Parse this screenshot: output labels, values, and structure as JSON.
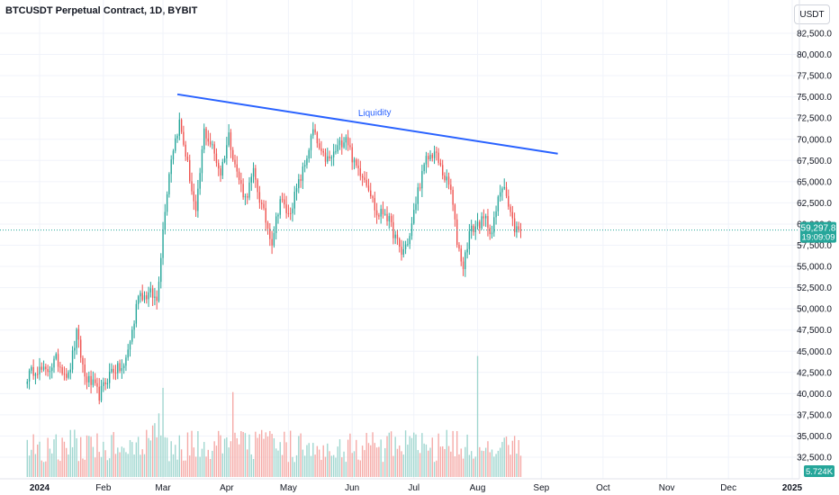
{
  "header": {
    "title": "BTCUSDT Perpetual Contract, 1D, BYBIT",
    "currency_label": "USDT"
  },
  "chart_data": {
    "type": "candlestick",
    "y_axis": {
      "ticks": [
        "32,500.0",
        "35,000.0",
        "37,500.0",
        "40,000.0",
        "42,500.0",
        "45,000.0",
        "47,500.0",
        "50,000.0",
        "52,500.0",
        "55,000.0",
        "57,500.0",
        "60,000.0",
        "62,500.0",
        "65,000.0",
        "67,500.0",
        "70,000.0",
        "72,500.0",
        "75,000.0",
        "77,500.0",
        "80,000.0",
        "82,500.0"
      ],
      "tick_values": [
        32500,
        35000,
        37500,
        40000,
        42500,
        45000,
        47500,
        50000,
        52500,
        55000,
        57500,
        60000,
        62500,
        65000,
        67500,
        70000,
        72500,
        75000,
        77500,
        80000,
        82500
      ],
      "ylim": [
        31500,
        85500
      ]
    },
    "x_axis": {
      "labels": [
        {
          "text": "2024",
          "day": 0,
          "bold": true
        },
        {
          "text": "Feb",
          "day": 31
        },
        {
          "text": "Mar",
          "day": 60
        },
        {
          "text": "Apr",
          "day": 91
        },
        {
          "text": "May",
          "day": 121
        },
        {
          "text": "Jun",
          "day": 152
        },
        {
          "text": "Jul",
          "day": 182
        },
        {
          "text": "Aug",
          "day": 213
        },
        {
          "text": "Sep",
          "day": 244
        },
        {
          "text": "Oct",
          "day": 274
        },
        {
          "text": "Nov",
          "day": 305
        },
        {
          "text": "Dec",
          "day": 335
        },
        {
          "text": "2025",
          "day": 366,
          "bold": true
        }
      ],
      "first_day": -6,
      "last_day": 378
    },
    "keypoints": [
      [
        -6,
        42000
      ],
      [
        -2,
        43000
      ],
      [
        3,
        42500
      ],
      [
        8,
        44000
      ],
      [
        14,
        42000
      ],
      [
        18,
        47000
      ],
      [
        22,
        42000
      ],
      [
        26,
        41000
      ],
      [
        29,
        39800
      ],
      [
        35,
        42800
      ],
      [
        41,
        43000
      ],
      [
        46,
        48500
      ],
      [
        48,
        52000
      ],
      [
        51,
        51500
      ],
      [
        54,
        51800
      ],
      [
        57,
        51000
      ],
      [
        61,
        62000
      ],
      [
        64,
        68000
      ],
      [
        68,
        72000
      ],
      [
        72,
        67000
      ],
      [
        76,
        61000
      ],
      [
        80,
        71000
      ],
      [
        84,
        69000
      ],
      [
        88,
        66000
      ],
      [
        92,
        70500
      ],
      [
        96,
        66000
      ],
      [
        100,
        63000
      ],
      [
        104,
        66000
      ],
      [
        108,
        62000
      ],
      [
        113,
        58000
      ],
      [
        117,
        63000
      ],
      [
        121,
        61000
      ],
      [
        125,
        64000
      ],
      [
        129,
        67000
      ],
      [
        133,
        71000
      ],
      [
        137,
        68000
      ],
      [
        141,
        67500
      ],
      [
        145,
        69000
      ],
      [
        149,
        70500
      ],
      [
        153,
        67000
      ],
      [
        157,
        66000
      ],
      [
        160,
        64500
      ],
      [
        164,
        61000
      ],
      [
        168,
        61500
      ],
      [
        172,
        59000
      ],
      [
        176,
        56500
      ],
      [
        180,
        58500
      ],
      [
        184,
        64000
      ],
      [
        188,
        67500
      ],
      [
        192,
        68500
      ],
      [
        196,
        66000
      ],
      [
        200,
        64000
      ],
      [
        203,
        58000
      ],
      [
        206,
        55000
      ],
      [
        209,
        59000
      ],
      [
        213,
        60000
      ],
      [
        217,
        60500
      ],
      [
        220,
        59000
      ],
      [
        224,
        64000
      ],
      [
        226,
        65000
      ],
      [
        228,
        62000
      ],
      [
        231,
        59500
      ],
      [
        234,
        59300
      ]
    ],
    "volume": {
      "axis_label": "5.724K",
      "spikes": [
        [
          60,
          4.2
        ],
        [
          94,
          4.0
        ],
        [
          213,
          5.7
        ]
      ],
      "base_level": 1.4
    },
    "last_price": {
      "value": 59297.8,
      "label": "59,297.8",
      "countdown": "19:09:09",
      "line_color": "#26a69a"
    },
    "trendline": {
      "start": {
        "day": 67,
        "price": 75300
      },
      "end": {
        "day": 252,
        "price": 68300
      },
      "color": "#2962ff"
    },
    "annotation": {
      "text": "Liquidity",
      "day": 163,
      "price": 72800
    },
    "colors": {
      "up": "#26a69a",
      "down": "#ef5350",
      "volume_up": "#9fd6cf",
      "volume_down": "#f5a9a6"
    }
  }
}
